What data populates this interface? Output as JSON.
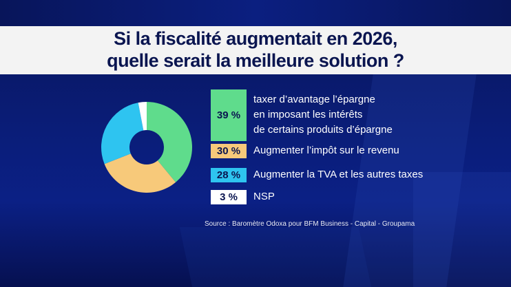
{
  "title": {
    "line1": "Si la fiscalité augmentait en 2026,",
    "line2": "quelle serait la meilleure solution ?"
  },
  "source": "Source : Baromètre Odoxa pour BFM Business - Capital - Groupama",
  "colors": {
    "green": "#5fdc8c",
    "orange": "#f7c97a",
    "blue": "#2ec4f0",
    "white": "#ffffff",
    "title_text": "#0a1550"
  },
  "chart_data": {
    "type": "pie",
    "donut": true,
    "title": "Si la fiscalité augmentait en 2026, quelle serait la meilleure solution ?",
    "legend_placement": "right",
    "slices": [
      {
        "value": 39,
        "value_label": "39 %",
        "label_lines": [
          "taxer d’avantage l’épargne",
          "en imposant les intérêts",
          "de certains produits d’épargne"
        ],
        "color": "#5fdc8c"
      },
      {
        "value": 30,
        "value_label": "30 %",
        "label_lines": [
          "Augmenter l’impôt sur le revenu"
        ],
        "color": "#f7c97a"
      },
      {
        "value": 28,
        "value_label": "28 %",
        "label_lines": [
          "Augmenter la TVA et les autres taxes"
        ],
        "color": "#2ec4f0"
      },
      {
        "value": 3,
        "value_label": "3 %",
        "label_lines": [
          "NSP"
        ],
        "color": "#ffffff"
      }
    ]
  }
}
